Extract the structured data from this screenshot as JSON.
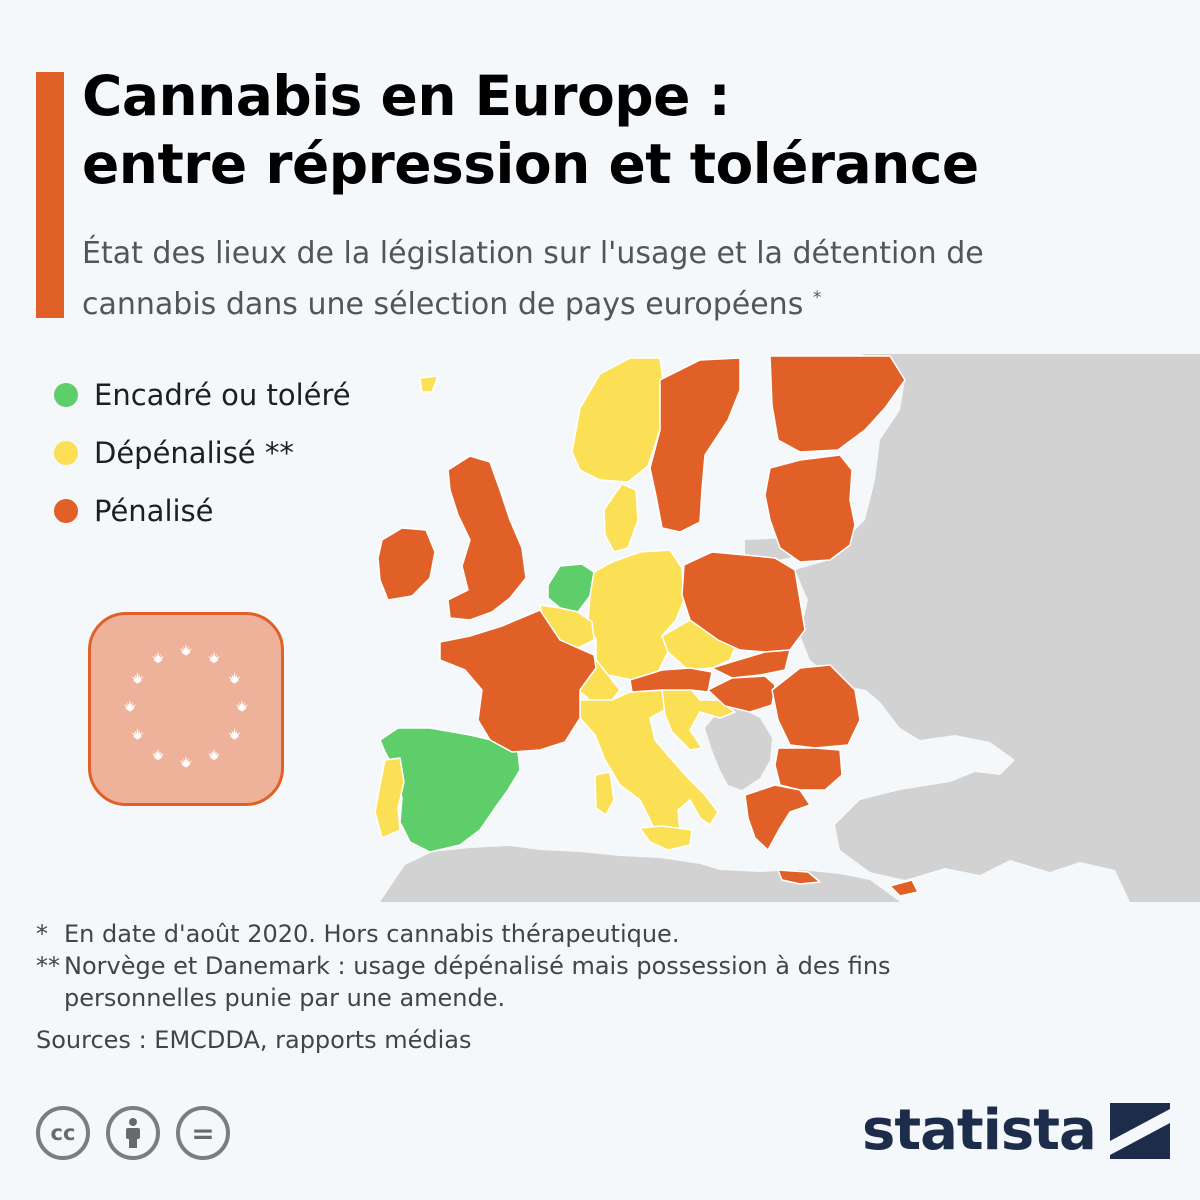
{
  "header": {
    "title_line1": "Cannabis en Europe :",
    "title_line2": "entre répression et tolérance",
    "subtitle_line1": "État des lieux de la législation sur l'usage et la détention de",
    "subtitle_line2": "cannabis dans une sélection de pays européens",
    "subtitle_mark": "*"
  },
  "legend": {
    "items": [
      {
        "label": "Encadré ou toléré",
        "color": "#5dce6a"
      },
      {
        "label": "Dépénalisé **",
        "color": "#fbe055"
      },
      {
        "label": "Pénalisé",
        "color": "#e06028"
      }
    ]
  },
  "map": {
    "colors": {
      "tolerated": "#5dce6a",
      "decriminalized": "#fbe055",
      "penalized": "#e06028",
      "other_land": "#d2d2d2",
      "sea": "#f5f8fb"
    },
    "countries": {
      "Netherlands": "tolerated",
      "Spain": "tolerated",
      "Portugal": "decriminalized",
      "Norway": "decriminalized",
      "Denmark": "decriminalized",
      "Germany": "decriminalized",
      "Belgium": "decriminalized",
      "Czechia": "decriminalized",
      "Switzerland": "decriminalized",
      "Italy": "decriminalized",
      "Croatia": "decriminalized",
      "Slovenia": "decriminalized",
      "Luxembourg": "decriminalized",
      "France": "penalized",
      "United Kingdom": "penalized",
      "Ireland": "penalized",
      "Sweden": "penalized",
      "Finland": "penalized",
      "Estonia": "penalized",
      "Latvia": "penalized",
      "Lithuania": "penalized",
      "Poland": "penalized",
      "Slovakia": "penalized",
      "Austria": "penalized",
      "Hungary": "penalized",
      "Romania": "penalized",
      "Bulgaria": "penalized",
      "Greece": "penalized",
      "Cyprus": "penalized"
    }
  },
  "emblem": {
    "icon": "cannabis-leaf-circle-icon",
    "fill": "#eeb29a",
    "stroke": "#e06028"
  },
  "notes": {
    "note1_mark": "*",
    "note1": "En date d'août 2020. Hors cannabis thérapeutique.",
    "note2_mark": "**",
    "note2_line1": "Norvège et Danemark : usage dépénalisé mais possession à des fins",
    "note2_line2": "personnelles punie par une amende.",
    "sources": "Sources : EMCDDA, rapports médias"
  },
  "footer": {
    "license_icons": [
      "cc-icon",
      "attribution-icon",
      "no-derivatives-icon"
    ],
    "cc_text": "cc",
    "nd_text": "=",
    "brand": "statista"
  }
}
